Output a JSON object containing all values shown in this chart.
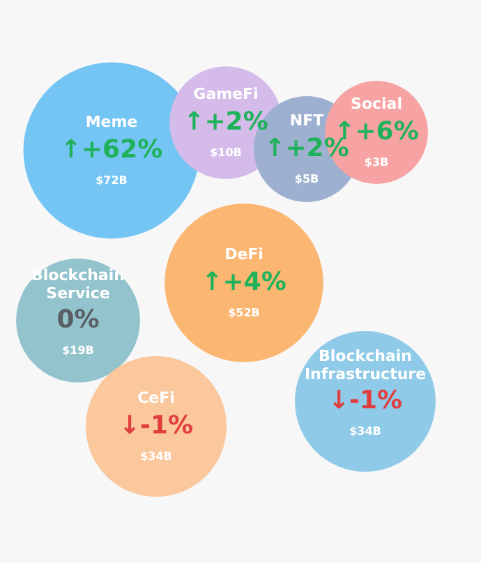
{
  "chart_data": {
    "type": "other",
    "categories": [
      "Meme",
      "GameFi",
      "NFT",
      "Social",
      "DeFi",
      "Blockchain Service",
      "CeFi",
      "Blockchain Infrastructure"
    ],
    "series": [
      {
        "colors": [
          "#74c4f4",
          "#d4bbea",
          "#9eb0d0",
          "#f7a3a3",
          "#fbb672",
          "#93c3cc",
          "#fbc79c",
          "#8fcbe8"
        ],
        "values": [
          72,
          10,
          5,
          3,
          52,
          19,
          34,
          34
        ],
        "value_labels": [
          "$72B",
          "$10B",
          "$5B",
          "$3B",
          "$52B",
          "$19B",
          "$34B",
          "$34B"
        ]
      },
      {
        "values": [
          62,
          2,
          2,
          6,
          4,
          0,
          -1,
          -1
        ],
        "value_labels": [
          "↑+62%",
          "↑+2%",
          "↑+2%",
          "↑+6%",
          "↑+4%",
          "0%",
          "↓-1%",
          "↓-1%"
        ]
      }
    ]
  }
}
